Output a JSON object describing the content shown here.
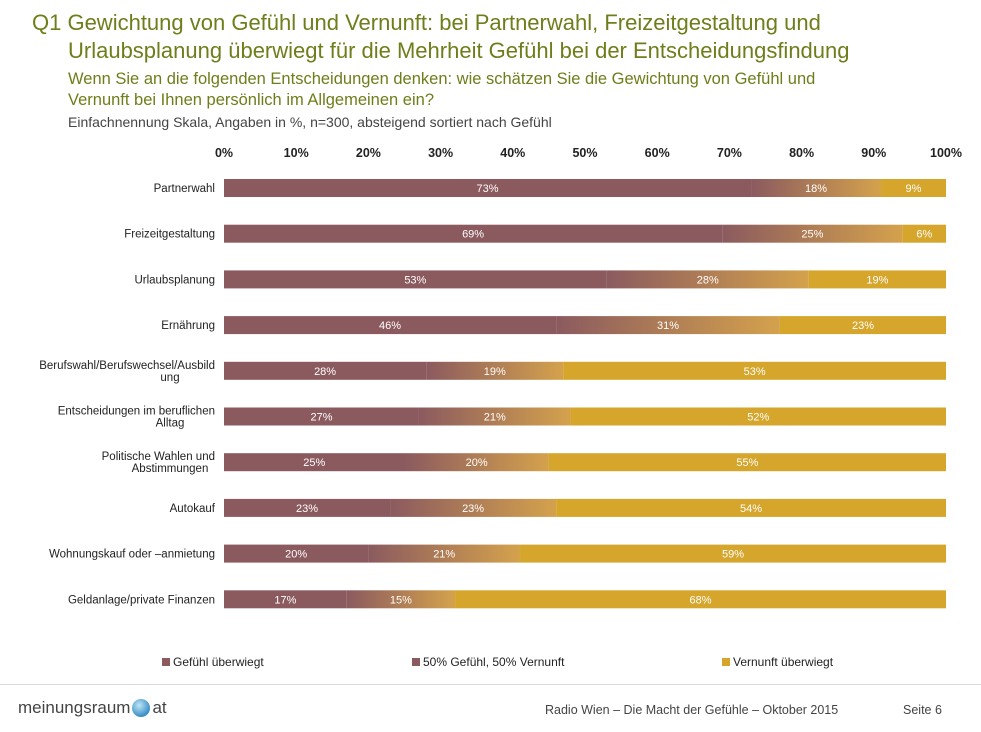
{
  "header": {
    "title_line1": "Q1 Gewichtung von Gefühl und Vernunft: bei Partnerwahl, Freizeitgestaltung und",
    "title_line2": "Urlaubsplanung überwiegt für die Mehrheit Gefühl bei der Entscheidungsfindung",
    "subtitle_line1": "Wenn Sie an die folgenden Entscheidungen denken: wie schätzen Sie die Gewichtung von Gefühl und",
    "subtitle_line2": "Vernunft bei Ihnen persönlich im Allgemeinen ein?",
    "note": "Einfachnennung Skala, Angaben in %, n=300, absteigend sortiert nach Gefühl"
  },
  "colors": {
    "gefuehl": "#8b5a5f",
    "mixed_from": "#8b5a5f",
    "mixed_to": "#d4a24c",
    "vernunft": "#d6a62c"
  },
  "chart_data": {
    "type": "bar",
    "orientation": "horizontal",
    "stacked": true,
    "xlim": [
      0,
      100
    ],
    "x_ticks": [
      "0%",
      "10%",
      "20%",
      "30%",
      "40%",
      "50%",
      "60%",
      "70%",
      "80%",
      "90%",
      "100%"
    ],
    "categories": [
      "Partnerwahl",
      "Freizeitgestaltung",
      "Urlaubsplanung",
      "Ernährung",
      "Berufswahl/Berufswechsel/Ausbild ung",
      "Entscheidungen im beruflichen Alltag",
      "Politische Wahlen und Abstimmungen",
      "Autokauf",
      "Wohnungskauf oder –anmietung",
      "Geldanlage/private Finanzen"
    ],
    "category_lines": [
      [
        "Partnerwahl"
      ],
      [
        "Freizeitgestaltung"
      ],
      [
        "Urlaubsplanung"
      ],
      [
        "Ernährung"
      ],
      [
        "Berufswahl/Berufswechsel/Ausbild",
        "ung"
      ],
      [
        "Entscheidungen im beruflichen",
        "Alltag"
      ],
      [
        "Politische Wahlen und",
        "Abstimmungen"
      ],
      [
        "Autokauf"
      ],
      [
        "Wohnungskauf oder –anmietung"
      ],
      [
        "Geldanlage/private Finanzen"
      ]
    ],
    "series": [
      {
        "name": "Gefühl überwiegt",
        "values": [
          73,
          69,
          53,
          46,
          28,
          27,
          25,
          23,
          20,
          17
        ]
      },
      {
        "name": "50% Gefühl, 50% Vernunft",
        "values": [
          18,
          25,
          28,
          31,
          19,
          21,
          20,
          23,
          21,
          15
        ]
      },
      {
        "name": "Vernunft überwiegt",
        "values": [
          9,
          6,
          19,
          23,
          53,
          52,
          55,
          54,
          59,
          68
        ]
      }
    ],
    "data_labels": [
      [
        "73%",
        "18%",
        "9%"
      ],
      [
        "69%",
        "25%",
        "6%"
      ],
      [
        "53%",
        "28%",
        "19%"
      ],
      [
        "46%",
        "31%",
        "23%"
      ],
      [
        "28%",
        "19%",
        "53%"
      ],
      [
        "27%",
        "21%",
        "52%"
      ],
      [
        "25%",
        "20%",
        "55%"
      ],
      [
        "23%",
        "23%",
        "54%"
      ],
      [
        "20%",
        "21%",
        "59%"
      ],
      [
        "17%",
        "15%",
        "68%"
      ]
    ],
    "legend_position": "bottom",
    "grid": false
  },
  "footer": {
    "logo_left": "meinungsraum",
    "logo_right": "at",
    "text": "Radio Wien – Die Macht der Gefühle – Oktober 2015",
    "page": "Seite 6"
  }
}
